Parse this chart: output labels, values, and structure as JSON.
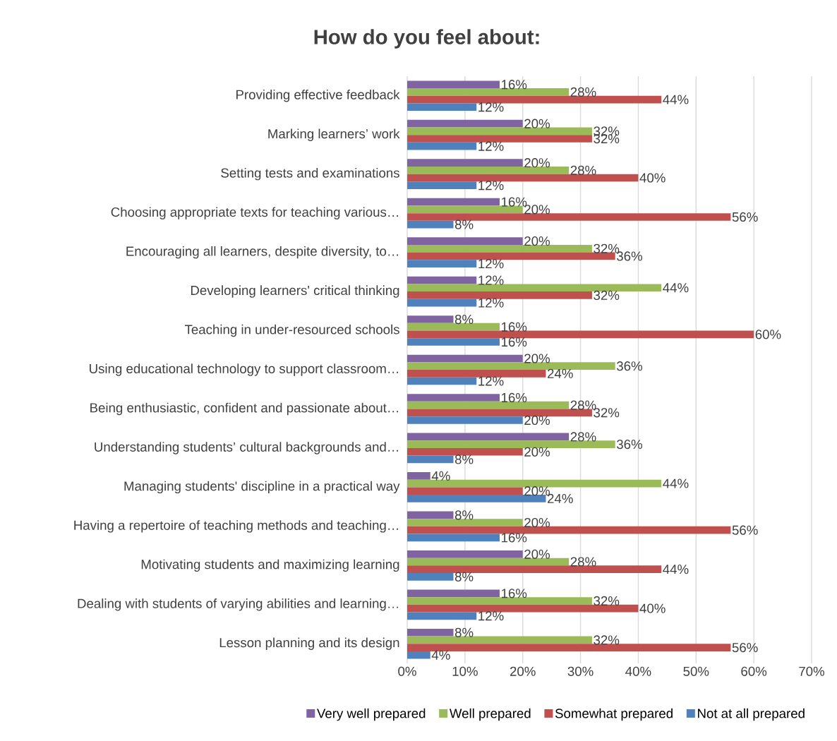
{
  "chart_data": {
    "type": "bar",
    "orientation": "horizontal",
    "title": "How do you feel about:",
    "categories": [
      "Providing effective feedback",
      "Marking learners’ work",
      "Setting tests and examinations",
      "Choosing appropriate texts for teaching various…",
      "Encouraging all learners, despite diversity, to…",
      "Developing learners' critical thinking",
      "Teaching in under-resourced schools",
      "Using educational technology to support classroom…",
      "Being enthusiastic, confident and passionate about…",
      "Understanding students’ cultural backgrounds and…",
      "Managing students' discipline in a practical way",
      "Having a repertoire of teaching methods and teaching…",
      "Motivating students and maximizing learning",
      "Dealing with students of varying abilities and learning…",
      "Lesson planning and its design"
    ],
    "series": [
      {
        "name": "Very well prepared",
        "color": "#8064a2",
        "values": [
          16,
          20,
          20,
          16,
          20,
          12,
          8,
          20,
          16,
          28,
          4,
          8,
          20,
          16,
          8
        ],
        "value_labels": [
          "16%",
          "20%",
          "20%",
          "16%",
          "20%",
          "12%",
          "8%",
          "20%",
          "16%",
          "28%",
          "4%",
          "8%",
          "20%",
          "16%",
          "8%"
        ]
      },
      {
        "name": "Well prepared",
        "color": "#9bbb59",
        "values": [
          28,
          32,
          28,
          20,
          32,
          44,
          16,
          36,
          28,
          36,
          44,
          20,
          28,
          32,
          32
        ],
        "value_labels": [
          "28%",
          "32%",
          "28%",
          "20%",
          "32%",
          "44%",
          "16%",
          "36%",
          "28%",
          "36%",
          "44%",
          "20%",
          "28%",
          "32%",
          "32%"
        ]
      },
      {
        "name": "Somewhat prepared",
        "color": "#c0504d",
        "values": [
          44,
          32,
          40,
          56,
          36,
          32,
          60,
          24,
          32,
          20,
          20,
          56,
          44,
          40,
          56
        ],
        "value_labels": [
          "44%",
          "32%",
          "40%",
          "56%",
          "36%",
          "32%",
          "60%",
          "24%",
          "32%",
          "20%",
          "20%",
          "56%",
          "44%",
          "40%",
          "56%"
        ]
      },
      {
        "name": "Not at all prepared",
        "color": "#4f81bd",
        "values": [
          12,
          12,
          12,
          8,
          12,
          12,
          16,
          12,
          20,
          8,
          24,
          16,
          8,
          12,
          4
        ],
        "value_labels": [
          "12%",
          "12%",
          "12%",
          "8%",
          "12%",
          "12%",
          "16%",
          "12%",
          "20%",
          "8%",
          "24%",
          "16%",
          "8%",
          "12%",
          "4%"
        ]
      }
    ],
    "xlim": [
      0,
      70
    ],
    "xticks": [
      {
        "value": 0,
        "label": "0%"
      },
      {
        "value": 10,
        "label": "10%"
      },
      {
        "value": 20,
        "label": "20%"
      },
      {
        "value": 30,
        "label": "30%"
      },
      {
        "value": 40,
        "label": "40%"
      },
      {
        "value": 50,
        "label": "50%"
      },
      {
        "value": 60,
        "label": "60%"
      },
      {
        "value": 70,
        "label": "70%"
      }
    ],
    "grid": "x",
    "legend": "bottom"
  }
}
